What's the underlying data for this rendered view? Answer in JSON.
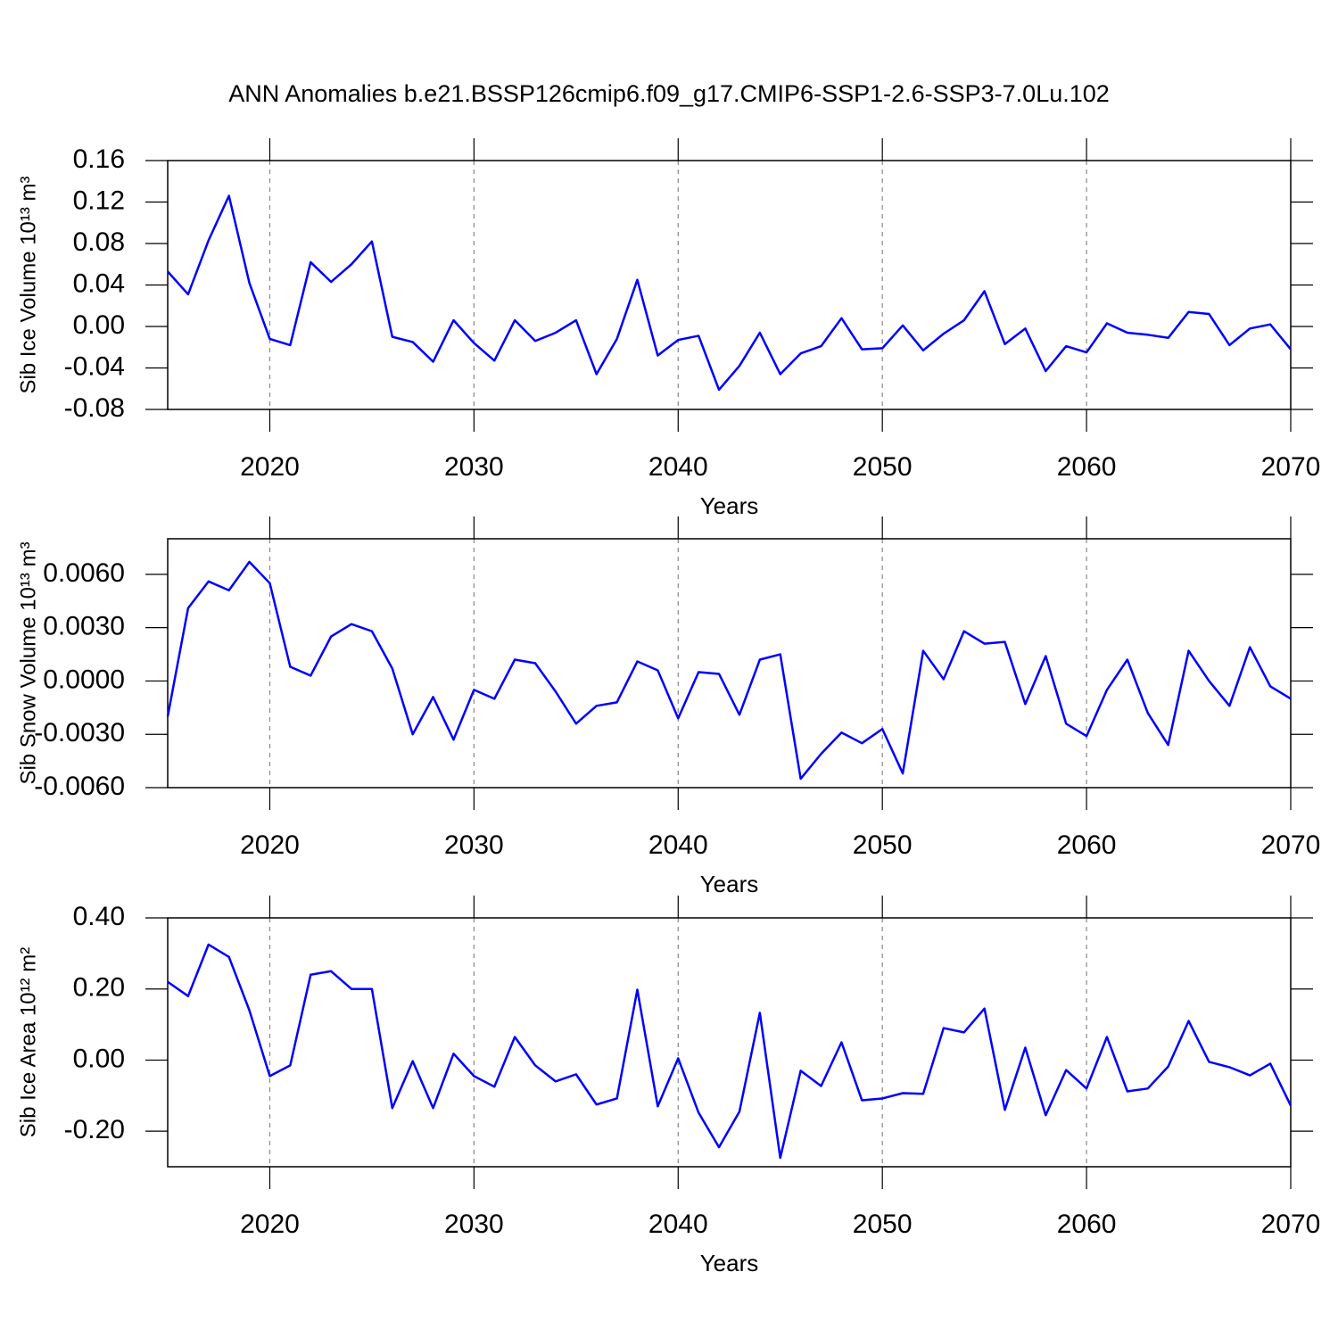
{
  "chart_data": [
    {
      "type": "line",
      "title": "ANN Anomalies b.e21.BSSP126cmip6.f09_g17.CMIP6-SSP1-2.6-SSP3-7.0Lu.102",
      "xlabel": "Years",
      "ylabel": "Sib Ice Volume 10¹³ m³",
      "color": "#0000ff",
      "xgrid": true,
      "x": [
        2015,
        2016,
        2017,
        2018,
        2019,
        2020,
        2021,
        2022,
        2023,
        2024,
        2025,
        2026,
        2027,
        2028,
        2029,
        2030,
        2031,
        2032,
        2033,
        2034,
        2035,
        2036,
        2037,
        2038,
        2039,
        2040,
        2041,
        2042,
        2043,
        2044,
        2045,
        2046,
        2047,
        2048,
        2049,
        2050,
        2051,
        2052,
        2053,
        2054,
        2055,
        2056,
        2057,
        2058,
        2059,
        2060,
        2061,
        2062,
        2063,
        2064,
        2065,
        2066,
        2067,
        2068,
        2069,
        2070
      ],
      "values": [
        0.053,
        0.031,
        0.083,
        0.126,
        0.042,
        -0.012,
        -0.018,
        0.062,
        0.043,
        0.06,
        0.082,
        -0.01,
        -0.015,
        -0.034,
        0.006,
        -0.016,
        -0.033,
        0.006,
        -0.014,
        -0.006,
        0.006,
        -0.046,
        -0.012,
        0.045,
        -0.028,
        -0.013,
        -0.009,
        -0.061,
        -0.038,
        -0.006,
        -0.046,
        -0.026,
        -0.019,
        0.008,
        -0.022,
        -0.021,
        0.001,
        -0.023,
        -0.007,
        0.006,
        0.034,
        -0.017,
        -0.002,
        -0.043,
        -0.019,
        -0.025,
        0.003,
        -0.006,
        -0.008,
        -0.011,
        0.014,
        0.012,
        -0.018,
        -0.002,
        0.002,
        -0.022
      ],
      "xlim": [
        2015,
        2070
      ],
      "xticks": [
        2020,
        2030,
        2040,
        2050,
        2060,
        2070
      ],
      "ylim": [
        -0.08,
        0.16
      ],
      "yticks": [
        0.16,
        0.12,
        0.08,
        0.04,
        {
          "value": 0,
          "label": "0.00"
        },
        -0.04,
        -0.08
      ]
    },
    {
      "type": "line",
      "xlabel": "Years",
      "ylabel": "Sib Snow Volume 10¹³ m³",
      "color": "#0000ff",
      "xgrid": true,
      "x": [
        2015,
        2016,
        2017,
        2018,
        2019,
        2020,
        2021,
        2022,
        2023,
        2024,
        2025,
        2026,
        2027,
        2028,
        2029,
        2030,
        2031,
        2032,
        2033,
        2034,
        2035,
        2036,
        2037,
        2038,
        2039,
        2040,
        2041,
        2042,
        2043,
        2044,
        2045,
        2046,
        2047,
        2048,
        2049,
        2050,
        2051,
        2052,
        2053,
        2054,
        2055,
        2056,
        2057,
        2058,
        2059,
        2060,
        2061,
        2062,
        2063,
        2064,
        2065,
        2066,
        2067,
        2068,
        2069,
        2070
      ],
      "values": [
        -0.002,
        0.0041,
        0.0056,
        0.0051,
        0.0067,
        0.0055,
        0.0008,
        0.0003,
        0.0025,
        0.0032,
        0.0028,
        0.0007,
        -0.003,
        -0.0009,
        -0.0033,
        -0.0005,
        -0.001,
        0.0012,
        0.001,
        -0.0006,
        -0.0024,
        -0.0014,
        -0.0012,
        0.0011,
        0.0006,
        -0.0021,
        0.0005,
        0.0004,
        -0.0019,
        0.0012,
        0.0015,
        -0.0055,
        -0.0041,
        -0.0029,
        -0.0035,
        -0.0027,
        -0.0052,
        0.0017,
        0.0001,
        0.0028,
        0.0021,
        0.0022,
        -0.0013,
        0.0014,
        -0.0024,
        -0.0031,
        -0.0005,
        0.0012,
        -0.0018,
        -0.0036,
        0.0017,
        0.0,
        -0.0014,
        0.0019,
        -0.0003,
        -0.001
      ],
      "xlim": [
        2015,
        2070
      ],
      "xticks": [
        2020,
        2030,
        2040,
        2050,
        2060,
        2070
      ],
      "ylim": [
        -0.006,
        0.008
      ],
      "yticks": [
        {
          "value": 0.006,
          "label": "0.0060"
        },
        {
          "value": 0.003,
          "label": "0.0030"
        },
        {
          "value": 0,
          "label": "0.0000"
        },
        {
          "value": -0.003,
          "label": "-0.0030"
        },
        {
          "value": -0.006,
          "label": "-0.0060"
        }
      ]
    },
    {
      "type": "line",
      "xlabel": "Years",
      "ylabel": "Sib Ice Area 10¹² m²",
      "color": "#0000ff",
      "xgrid": true,
      "x": [
        2015,
        2016,
        2017,
        2018,
        2019,
        2020,
        2021,
        2022,
        2023,
        2024,
        2025,
        2026,
        2027,
        2028,
        2029,
        2030,
        2031,
        2032,
        2033,
        2034,
        2035,
        2036,
        2037,
        2038,
        2039,
        2040,
        2041,
        2042,
        2043,
        2044,
        2045,
        2046,
        2047,
        2048,
        2049,
        2050,
        2051,
        2052,
        2053,
        2054,
        2055,
        2056,
        2057,
        2058,
        2059,
        2060,
        2061,
        2062,
        2063,
        2064,
        2065,
        2066,
        2067,
        2068,
        2069,
        2070
      ],
      "values": [
        0.22,
        0.18,
        0.325,
        0.29,
        0.14,
        -0.045,
        -0.015,
        0.24,
        0.25,
        0.2,
        0.2,
        -0.135,
        -0.003,
        -0.135,
        0.018,
        -0.045,
        -0.075,
        0.065,
        -0.015,
        -0.06,
        -0.04,
        -0.125,
        -0.108,
        0.198,
        -0.13,
        0.005,
        -0.148,
        -0.245,
        -0.145,
        0.133,
        -0.275,
        -0.03,
        -0.073,
        0.05,
        -0.113,
        -0.108,
        -0.093,
        -0.095,
        0.09,
        0.078,
        0.145,
        -0.14,
        0.035,
        -0.155,
        -0.028,
        -0.08,
        0.065,
        -0.088,
        -0.08,
        -0.018,
        0.11,
        -0.005,
        -0.02,
        -0.043,
        -0.01,
        -0.128
      ],
      "xlim": [
        2015,
        2070
      ],
      "xticks": [
        2020,
        2030,
        2040,
        2050,
        2060,
        2070
      ],
      "ylim": [
        -0.3,
        0.4
      ],
      "yticks": [
        {
          "value": 0.4,
          "label": "0.40"
        },
        {
          "value": 0.2,
          "label": "0.20"
        },
        {
          "value": 0,
          "label": "0.00"
        },
        {
          "value": -0.2,
          "label": "-0.20"
        }
      ]
    }
  ]
}
